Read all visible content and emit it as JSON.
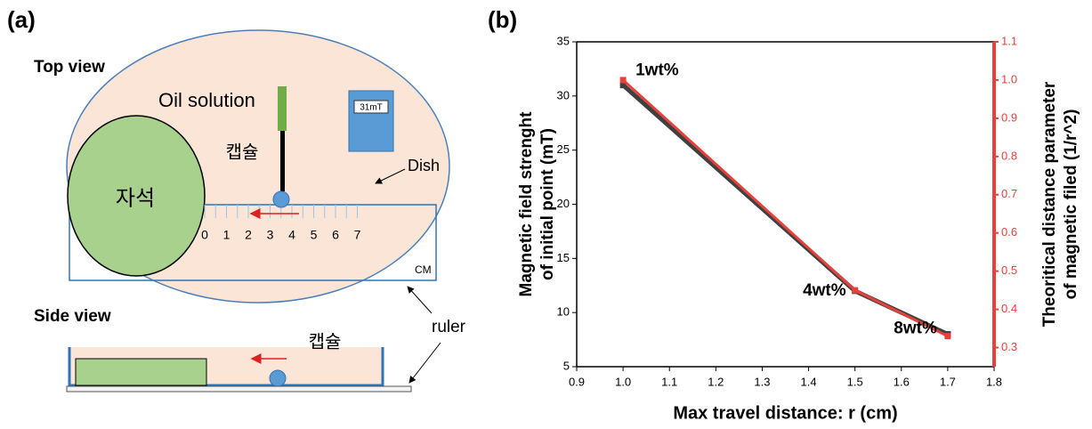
{
  "panel_labels": [
    "(a)",
    "(b)"
  ],
  "diagram": {
    "top_view": "Top view",
    "oil_solution": "Oil solution",
    "meter": "31mT",
    "capsule_top": "캡슐",
    "magnet": "자석",
    "dish": "Dish",
    "ruler_ticks": [
      "0",
      "1",
      "2",
      "3",
      "4",
      "5",
      "6",
      "7"
    ],
    "ruler_unit": "CM",
    "side_view": "Side view",
    "capsule_side": "캡슐",
    "ruler": "ruler"
  },
  "chart_data": {
    "type": "line",
    "xlabel": "Max travel distance: r (cm)",
    "ylabel": [
      "Magnetic field strenght",
      "of initial point (mT)"
    ],
    "y2label": [
      "Theoritical distance parameter",
      "of magnetic filed (1/r^2)"
    ],
    "x": [
      1.0,
      1.5,
      1.7
    ],
    "point_labels": [
      "1wt%",
      "4wt%",
      "8wt%"
    ],
    "series": [
      {
        "color": "#404040",
        "values": [
          31,
          12,
          8
        ]
      },
      {
        "color": "#e8413c",
        "axis": "y2",
        "values": [
          1.0,
          0.45,
          0.33
        ]
      }
    ],
    "xlim": [
      0.9,
      1.8
    ],
    "xticks": [
      0.9,
      {
        "value": 1,
        "label": "1.0"
      },
      1.1,
      1.2,
      1.3,
      1.4,
      1.5,
      1.6,
      1.7,
      1.8
    ],
    "ylim": [
      5,
      35
    ],
    "yticks": [
      5,
      10,
      15,
      20,
      25,
      30,
      35
    ],
    "y2lim": [
      0.25,
      1.1
    ],
    "y2ticks": [
      0.3,
      0.4,
      0.5,
      0.6,
      0.7,
      0.8,
      0.9,
      {
        "value": 1,
        "label": "1.0"
      },
      1.1
    ],
    "y2color": "#e8413c"
  }
}
